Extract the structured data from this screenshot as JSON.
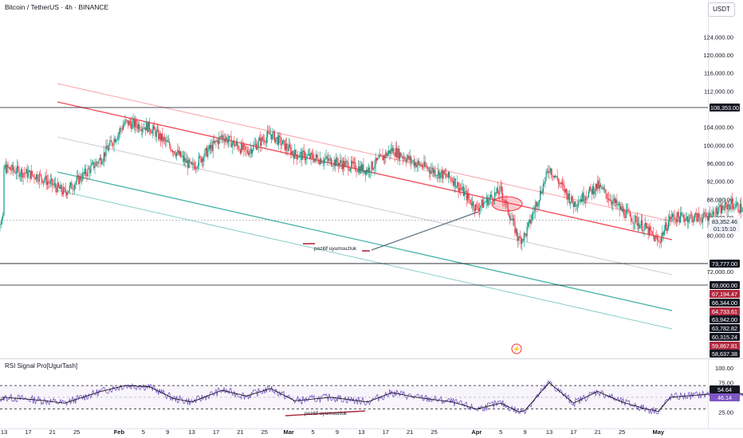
{
  "header": {
    "title": "Bitcoin / TetherUS · 4h · BINANCE",
    "currency_button": "USDT"
  },
  "chart_data": {
    "type": "line",
    "symbol": "Bitcoin / TetherUS",
    "interval": "4h",
    "exchange": "BINANCE",
    "ylim": [
      58637.38,
      129000
    ],
    "y_ticks": [
      124000,
      120000,
      116000,
      112000,
      104000,
      100000,
      96000,
      92000,
      88000,
      84000,
      80000,
      72000
    ],
    "x_ticks": [
      "13",
      "17",
      "21",
      "25",
      "Feb",
      "5",
      "9",
      "13",
      "17",
      "21",
      "25",
      "Mar",
      "5",
      "9",
      "13",
      "17",
      "21",
      "25",
      "Apr",
      "5",
      "9",
      "13",
      "17",
      "21",
      "25",
      "May"
    ],
    "price_series_approx": [
      [
        0,
        95000
      ],
      [
        6,
        93000
      ],
      [
        10,
        89500
      ],
      [
        16,
        97000
      ],
      [
        20,
        105000
      ],
      [
        24,
        104000
      ],
      [
        28,
        99000
      ],
      [
        31,
        95000
      ],
      [
        36,
        102000
      ],
      [
        40,
        98500
      ],
      [
        44,
        102500
      ],
      [
        48,
        98000
      ],
      [
        54,
        96500
      ],
      [
        60,
        94500
      ],
      [
        64,
        99000
      ],
      [
        68,
        96000
      ],
      [
        74,
        92500
      ],
      [
        78,
        86000
      ],
      [
        82,
        90000
      ],
      [
        85,
        79000
      ],
      [
        86,
        80000
      ],
      [
        90,
        95000
      ],
      [
        94,
        87000
      ],
      [
        98,
        91000
      ],
      [
        102,
        85500
      ],
      [
        106,
        81500
      ],
      [
        108,
        78500
      ],
      [
        110,
        84000
      ],
      [
        116,
        84000
      ],
      [
        120,
        87000
      ],
      [
        124,
        84500
      ],
      [
        128,
        86500
      ],
      [
        132,
        89000
      ],
      [
        136,
        86500
      ],
      [
        140,
        84000
      ],
      [
        144,
        82000
      ],
      [
        148,
        85000
      ],
      [
        151,
        83352
      ]
    ],
    "horizontal_levels": [
      108353,
      83352.46,
      73777,
      69000
    ],
    "price_scale_labels": [
      {
        "text": "108,353.00",
        "bg": "#131722"
      },
      {
        "text": "83,352.46",
        "bg": "#f0f3fa"
      },
      {
        "text": "01:15:10",
        "bg": "#f0f3fa"
      },
      {
        "text": "73,777.00",
        "bg": "#131722"
      },
      {
        "text": "69,000.00",
        "bg": "#131722"
      },
      {
        "text": "67,194.47",
        "bg": "#b2283e"
      },
      {
        "text": "66,344.00",
        "bg": "#131722"
      },
      {
        "text": "64,733.61",
        "bg": "#b2283e"
      },
      {
        "text": "63,942.00",
        "bg": "#131722"
      },
      {
        "text": "63,782.82",
        "bg": "#131722"
      },
      {
        "text": "60,315.24",
        "bg": "#131722"
      },
      {
        "text": "59,867.81",
        "bg": "#b2283e"
      },
      {
        "text": "58,637.38",
        "bg": "#131722"
      }
    ],
    "annotations": [
      "pozitif uyumsuzluk",
      "pozitif uyumsuzluk"
    ],
    "rsi": {
      "title": "RSI Signal Pro[UgurTash]",
      "ylim": [
        20,
        100
      ],
      "y_ticks": [
        100,
        75,
        25
      ],
      "levels": [
        70,
        50,
        30
      ],
      "value_labels": [
        {
          "text": "54.64",
          "bg": "#131722"
        },
        {
          "text": "46.14",
          "bg": "#7e57c2"
        }
      ],
      "series_approx": [
        [
          0,
          50
        ],
        [
          6,
          45
        ],
        [
          10,
          40
        ],
        [
          16,
          60
        ],
        [
          20,
          70
        ],
        [
          24,
          68
        ],
        [
          28,
          48
        ],
        [
          31,
          42
        ],
        [
          36,
          62
        ],
        [
          40,
          52
        ],
        [
          44,
          65
        ],
        [
          48,
          44
        ],
        [
          54,
          50
        ],
        [
          60,
          42
        ],
        [
          64,
          58
        ],
        [
          68,
          50
        ],
        [
          74,
          42
        ],
        [
          78,
          30
        ],
        [
          82,
          40
        ],
        [
          85,
          25
        ],
        [
          86,
          28
        ],
        [
          90,
          75
        ],
        [
          94,
          40
        ],
        [
          98,
          60
        ],
        [
          102,
          42
        ],
        [
          106,
          30
        ],
        [
          108,
          26
        ],
        [
          110,
          50
        ],
        [
          116,
          55
        ],
        [
          120,
          62
        ],
        [
          124,
          48
        ],
        [
          128,
          58
        ],
        [
          132,
          66
        ],
        [
          136,
          52
        ],
        [
          140,
          40
        ],
        [
          144,
          35
        ],
        [
          148,
          62
        ],
        [
          151,
          46
        ]
      ]
    },
    "colors": {
      "up": "#089981",
      "down": "#f23645",
      "channel_red": "#f23645",
      "channel_green": "#26a69a",
      "rsi": "#7e57c2",
      "signal": "#131722"
    }
  }
}
